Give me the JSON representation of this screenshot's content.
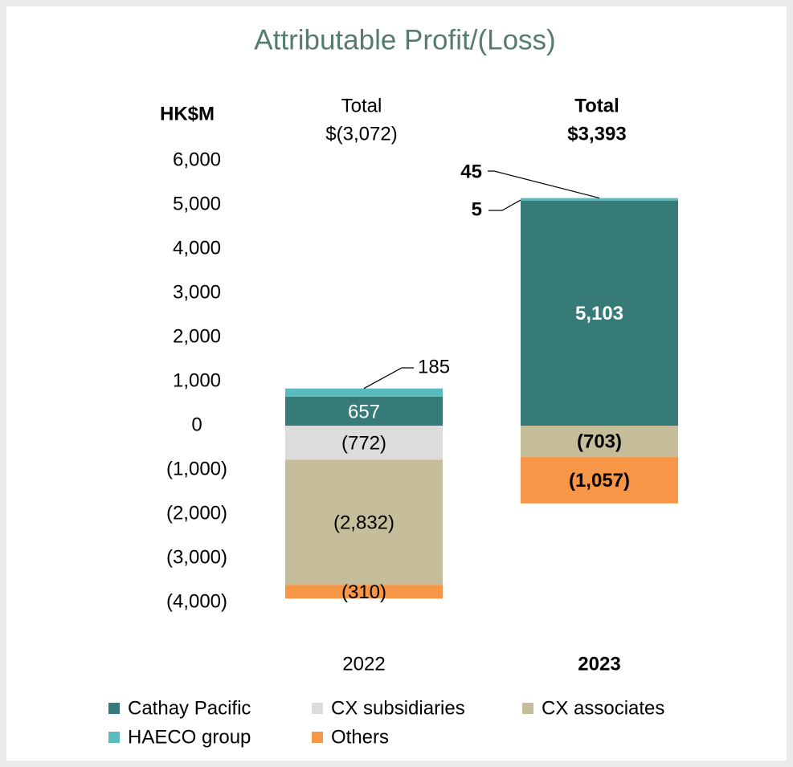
{
  "chart_data": {
    "type": "stacked-bar",
    "title": "Attributable  Profit/(Loss)",
    "y_label": "HK$M",
    "categories": [
      "2022",
      "2023"
    ],
    "series": [
      {
        "name": "Cathay Pacific",
        "color": "#367b77",
        "values": [
          657,
          5103
        ],
        "value_labels": [
          "657",
          "5,103"
        ]
      },
      {
        "name": "CX subsidiaries",
        "color": "#dcdcdc",
        "values": [
          -772,
          5
        ],
        "value_labels": [
          "(772)",
          "5"
        ]
      },
      {
        "name": "CX associates",
        "color": "#c6be9a",
        "values": [
          -2832,
          -703
        ],
        "value_labels": [
          "(2,832)",
          "(703)"
        ]
      },
      {
        "name": "HAECO group",
        "color": "#5bbcc0",
        "values": [
          185,
          45
        ],
        "value_labels": [
          "185",
          "45"
        ]
      },
      {
        "name": "Others",
        "color": "#f79646",
        "values": [
          -310,
          -1057
        ],
        "value_labels": [
          "(310)",
          "(1,057)"
        ]
      }
    ],
    "totals": {
      "label": "Total",
      "values": [
        -3072,
        3393
      ],
      "value_labels": [
        "$(3,072)",
        "$3,393"
      ]
    },
    "ylim": [
      -4000,
      6000
    ],
    "yticks": [
      {
        "value": -4000,
        "label": "(4,000)"
      },
      {
        "value": -3000,
        "label": "(3,000)"
      },
      {
        "value": -2000,
        "label": "(2,000)"
      },
      {
        "value": -1000,
        "label": "(1,000)"
      },
      0,
      {
        "value": 1000,
        "label": "1,000"
      },
      {
        "value": 2000,
        "label": "2,000"
      },
      {
        "value": 3000,
        "label": "3,000"
      },
      {
        "value": 4000,
        "label": "4,000"
      },
      {
        "value": 5000,
        "label": "5,000"
      },
      {
        "value": 6000,
        "label": "6,000"
      }
    ],
    "grid": false
  }
}
